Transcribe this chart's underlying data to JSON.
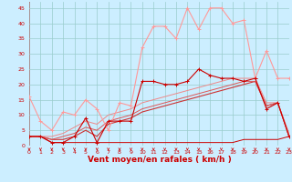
{
  "background_color": "#cceeff",
  "grid_color": "#99cccc",
  "xlabel": "Vent moyen/en rafales ( km/h )",
  "xlabel_color": "#cc0000",
  "xlabel_fontsize": 6.5,
  "yticks": [
    0,
    5,
    10,
    15,
    20,
    25,
    30,
    35,
    40,
    45
  ],
  "xticks": [
    0,
    1,
    2,
    3,
    4,
    5,
    6,
    7,
    8,
    9,
    10,
    11,
    12,
    13,
    14,
    15,
    16,
    17,
    18,
    19,
    20,
    21,
    22,
    23
  ],
  "ylim": [
    0,
    47
  ],
  "xlim": [
    0,
    23
  ],
  "series": [
    {
      "x": [
        0,
        1,
        2,
        3,
        4,
        5,
        6,
        7,
        8,
        9,
        10,
        11,
        12,
        13,
        14,
        15,
        16,
        17,
        18,
        19,
        20,
        21,
        22,
        23
      ],
      "y": [
        3,
        3,
        1,
        1,
        3,
        9,
        1,
        8,
        8,
        8,
        21,
        21,
        20,
        20,
        21,
        25,
        23,
        22,
        22,
        21,
        22,
        12,
        14,
        3
      ],
      "color": "#cc0000",
      "lw": 0.8,
      "marker": "+",
      "ms": 3,
      "zorder": 5
    },
    {
      "x": [
        0,
        1,
        2,
        3,
        4,
        5,
        6,
        7,
        8,
        9,
        10,
        11,
        12,
        13,
        14,
        15,
        16,
        17,
        18,
        19,
        20,
        21,
        22,
        23
      ],
      "y": [
        16,
        8,
        5,
        11,
        10,
        15,
        12,
        5,
        14,
        13,
        32,
        39,
        39,
        35,
        45,
        38,
        45,
        45,
        40,
        41,
        22,
        31,
        22,
        22
      ],
      "color": "#ff9999",
      "lw": 0.8,
      "marker": "+",
      "ms": 2.5,
      "zorder": 4
    },
    {
      "x": [
        0,
        1,
        2,
        3,
        4,
        5,
        6,
        7,
        8,
        9,
        10,
        11,
        12,
        13,
        14,
        15,
        16,
        17,
        18,
        19,
        20,
        21,
        22,
        23
      ],
      "y": [
        3,
        3,
        1,
        1,
        1,
        1,
        1,
        1,
        1,
        1,
        1,
        1,
        1,
        1,
        1,
        1,
        1,
        1,
        1,
        2,
        2,
        2,
        2,
        3
      ],
      "color": "#cc0000",
      "lw": 0.7,
      "marker": null,
      "ms": 0,
      "zorder": 3
    },
    {
      "x": [
        0,
        1,
        2,
        3,
        4,
        5,
        6,
        7,
        8,
        9,
        10,
        11,
        12,
        13,
        14,
        15,
        16,
        17,
        18,
        19,
        20,
        21,
        22,
        23
      ],
      "y": [
        3,
        3,
        2,
        2,
        3,
        5,
        3,
        7,
        8,
        9,
        11,
        12,
        13,
        14,
        15,
        16,
        17,
        18,
        19,
        20,
        21,
        13,
        14,
        3
      ],
      "color": "#cc3333",
      "lw": 0.8,
      "marker": null,
      "ms": 0,
      "zorder": 3
    },
    {
      "x": [
        0,
        1,
        2,
        3,
        4,
        5,
        6,
        7,
        8,
        9,
        10,
        11,
        12,
        13,
        14,
        15,
        16,
        17,
        18,
        19,
        20,
        21,
        22,
        23
      ],
      "y": [
        3,
        3,
        2,
        3,
        4,
        6,
        5,
        8,
        9,
        10,
        12,
        13,
        14,
        15,
        16,
        17,
        18,
        19,
        20,
        21,
        21,
        13,
        14,
        3
      ],
      "color": "#dd5555",
      "lw": 0.7,
      "marker": null,
      "ms": 0,
      "zorder": 3
    },
    {
      "x": [
        0,
        1,
        2,
        3,
        4,
        5,
        6,
        7,
        8,
        9,
        10,
        11,
        12,
        13,
        14,
        15,
        16,
        17,
        18,
        19,
        20,
        21,
        22,
        23
      ],
      "y": [
        3,
        3,
        3,
        4,
        6,
        8,
        7,
        10,
        11,
        12,
        14,
        15,
        16,
        17,
        18,
        19,
        20,
        21,
        22,
        22,
        22,
        14,
        14,
        4
      ],
      "color": "#ee8888",
      "lw": 0.7,
      "marker": null,
      "ms": 0,
      "zorder": 2
    }
  ],
  "tick_fontsize": 4.5,
  "tick_color": "#cc0000",
  "arrow_color": "#cc0000"
}
